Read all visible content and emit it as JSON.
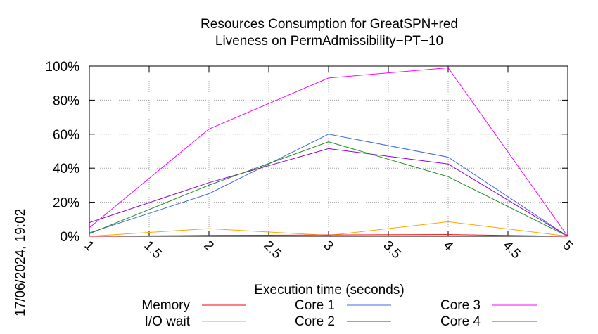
{
  "chart_data": {
    "type": "line",
    "title": [
      "Resources Consumption for GreatSPN+red",
      "Liveness on PermAdmissibility−PT−10"
    ],
    "xlabel": "Execution time (seconds)",
    "ylabel": "",
    "side_label": "17/06/2024, 19:02",
    "xlim": [
      1,
      5
    ],
    "ylim": [
      0,
      100
    ],
    "x_ticks": [
      "1",
      "1.5",
      "2",
      "2.5",
      "3",
      "3.5",
      "4",
      "4.5",
      "5"
    ],
    "x_tick_values": [
      1,
      1.5,
      2,
      2.5,
      3,
      3.5,
      4,
      4.5,
      5
    ],
    "y_ticks": [
      "0%",
      "20%",
      "40%",
      "60%",
      "80%",
      "100%"
    ],
    "y_tick_values": [
      0,
      20,
      40,
      60,
      80,
      100
    ],
    "grid": true,
    "legend_position": "bottom",
    "x": [
      1,
      2,
      3,
      4,
      5
    ],
    "series": [
      {
        "name": "Memory",
        "color": "#ff0000",
        "values": [
          0,
          0.5,
          0.8,
          1.0,
          0
        ]
      },
      {
        "name": "I/O wait",
        "color": "#ffa500",
        "values": [
          0,
          4.5,
          0.5,
          8.5,
          0
        ]
      },
      {
        "name": "Core 1",
        "color": "#4169e1",
        "values": [
          2,
          25,
          60,
          46.5,
          0
        ]
      },
      {
        "name": "Core 2",
        "color": "#9400d3",
        "values": [
          8,
          31.5,
          51.5,
          42.5,
          0
        ]
      },
      {
        "name": "Core 3",
        "color": "#ff00ff",
        "values": [
          5,
          63,
          93,
          99,
          0
        ]
      },
      {
        "name": "Core 4",
        "color": "#228b22",
        "values": [
          1.5,
          30,
          55.5,
          35,
          0
        ]
      }
    ]
  }
}
